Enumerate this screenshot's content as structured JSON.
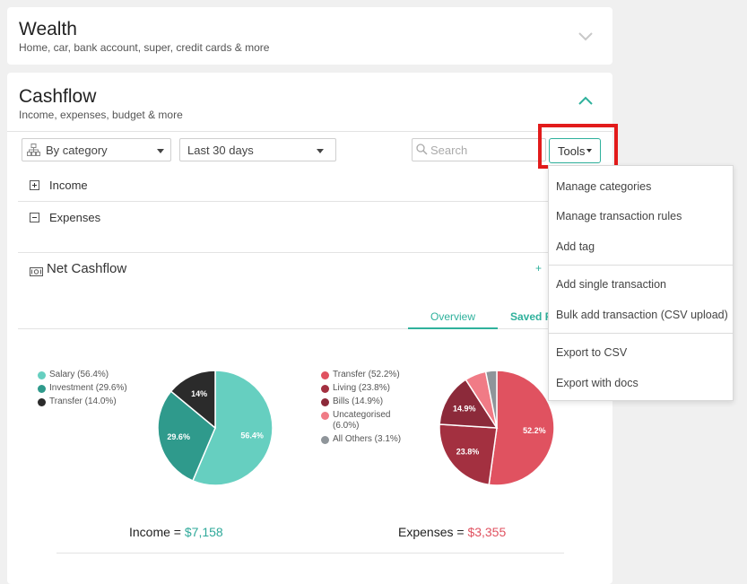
{
  "wealth": {
    "title": "Wealth",
    "subtitle": "Home, car, bank account, super, credit cards & more"
  },
  "cashflow": {
    "title": "Cashflow",
    "subtitle": "Income, expenses, budget & more"
  },
  "filters": {
    "group_by": "By category",
    "period": "Last 30 days",
    "search_placeholder": "Search",
    "tools_label": "Tools"
  },
  "rows": {
    "income": "Income",
    "expenses": "Expenses"
  },
  "net": {
    "title": "Net Cashflow",
    "plus": "+"
  },
  "tabs": {
    "overview": "Overview",
    "saved": "Saved R"
  },
  "income_chart": {
    "legend": [
      {
        "label": "Salary (56.4%)",
        "color": "#66cfc0"
      },
      {
        "label": "Investment (29.6%)",
        "color": "#2f9a8c"
      },
      {
        "label": "Transfer (14.0%)",
        "color": "#2b2b2b"
      }
    ],
    "slices": [
      {
        "value": 56.4,
        "label": "56.4%",
        "color": "#66cfc0"
      },
      {
        "value": 29.6,
        "label": "29.6%",
        "color": "#2f9a8c"
      },
      {
        "value": 14.0,
        "label": "14%",
        "color": "#2b2b2b"
      }
    ],
    "total_label": "Income = ",
    "total_value": "$7,158"
  },
  "expense_chart": {
    "legend": [
      {
        "label": "Transfer (52.2%)",
        "color": "#e05260"
      },
      {
        "label": "Living (23.8%)",
        "color": "#a33040"
      },
      {
        "label": "Bills (14.9%)",
        "color": "#8c2a3a"
      },
      {
        "label": "Uncategorised",
        "color": "#f07b86"
      },
      {
        "label": "(6.0%)",
        "color": ""
      },
      {
        "label": "All Others (3.1%)",
        "color": "#8f959a"
      }
    ],
    "slices": [
      {
        "value": 52.2,
        "label": "52.2%",
        "color": "#e05260"
      },
      {
        "value": 23.8,
        "label": "23.8%",
        "color": "#a33040"
      },
      {
        "value": 14.9,
        "label": "14.9%",
        "color": "#8c2a3a"
      },
      {
        "value": 6.0,
        "label": "",
        "color": "#f07b86"
      },
      {
        "value": 3.1,
        "label": "",
        "color": "#8f959a"
      }
    ],
    "total_label": "Expenses = ",
    "total_value": "$3,355"
  },
  "tools_menu": {
    "items": [
      "Manage categories",
      "Manage transaction rules",
      "Add tag",
      "Add single transaction",
      "Bulk add transaction (CSV upload)",
      "Export to CSV",
      "Export with docs"
    ]
  }
}
